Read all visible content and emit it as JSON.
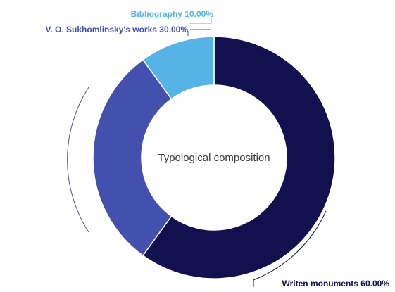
{
  "chart_data": {
    "type": "pie",
    "donut": true,
    "center_label": "Typological composition",
    "slices": [
      {
        "label": "Writen monuments",
        "value": 60.0,
        "value_text": "60.00%",
        "color": "#12104f"
      },
      {
        "label": "V. O. Sukhomlinsky's works",
        "value": 30.0,
        "value_text": "30.00%",
        "color": "#4450ad"
      },
      {
        "label": "Bibliography",
        "value": 10.0,
        "value_text": "10.00%",
        "color": "#56b3e6"
      }
    ]
  }
}
